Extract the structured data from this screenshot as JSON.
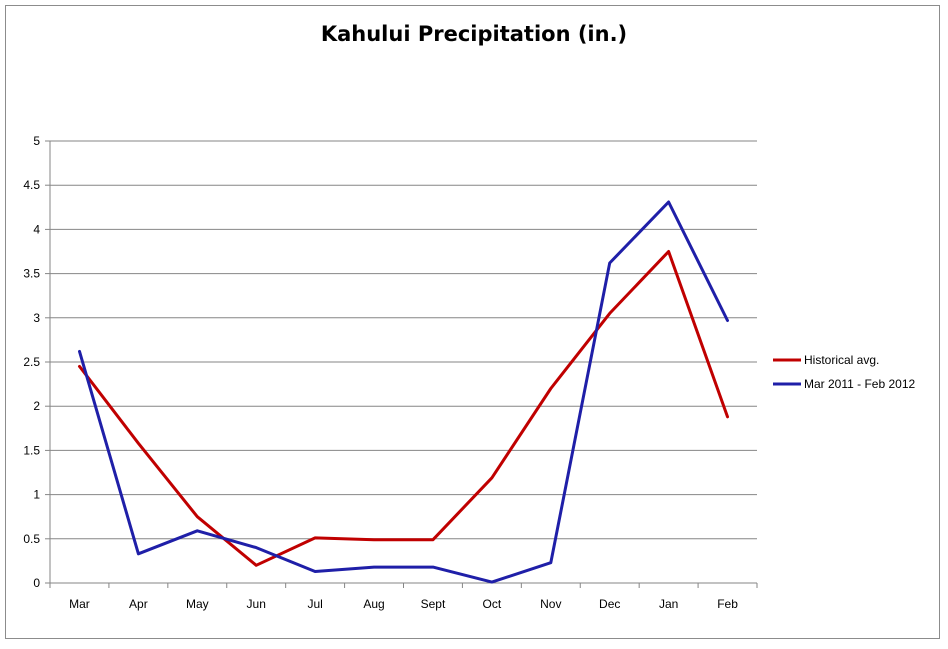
{
  "chart_data": {
    "type": "line",
    "title": "Kahului Precipitation (in.)",
    "xlabel": "",
    "ylabel": "",
    "categories": [
      "Mar",
      "Apr",
      "May",
      "Jun",
      "Jul",
      "Aug",
      "Sept",
      "Oct",
      "Nov",
      "Dec",
      "Jan",
      "Feb"
    ],
    "ylim": [
      0,
      5
    ],
    "yticks": [
      "0",
      "0.5",
      "1",
      "1.5",
      "2",
      "2.5",
      "3",
      "3.5",
      "4",
      "4.5",
      "5"
    ],
    "grid": true,
    "legend_position": "right",
    "series": [
      {
        "name": "Historical avg.",
        "color": "#c00000",
        "values": [
          2.45,
          1.58,
          0.75,
          0.2,
          0.51,
          0.49,
          0.49,
          1.19,
          2.2,
          3.05,
          3.75,
          1.88
        ]
      },
      {
        "name": "Mar 2011 - Feb 2012",
        "color": "#1f1fa8",
        "values": [
          2.62,
          0.33,
          0.59,
          0.4,
          0.13,
          0.18,
          0.18,
          0.01,
          0.23,
          3.62,
          4.31,
          2.97
        ]
      }
    ]
  }
}
